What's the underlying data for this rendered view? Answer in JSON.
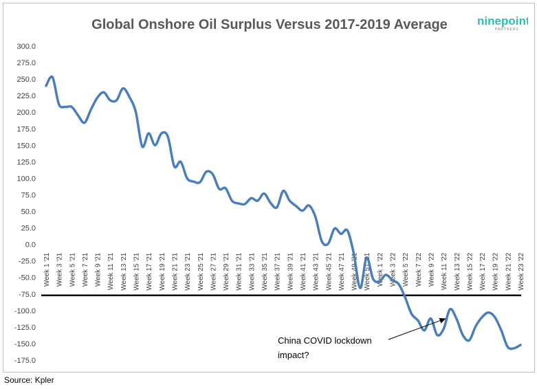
{
  "logo": {
    "word": "ninepoint",
    "sub": "PARTNERS",
    "color": "#2bbfb0"
  },
  "source": "Source: Kpler",
  "chart_data": {
    "type": "line",
    "title": "Global Onshore Oil Surplus Versus 2017-2019 Average",
    "xlabel": "",
    "ylabel": "",
    "ylim": [
      -175,
      300
    ],
    "yticks": [
      300,
      275,
      250,
      225,
      200,
      175,
      150,
      125,
      100,
      75,
      50,
      25,
      0,
      -25,
      -50,
      -75,
      -100,
      -125,
      -150,
      -175
    ],
    "ytick_labels": [
      "300.0",
      "275.0",
      "250.0",
      "225.0",
      "200.0",
      "175.0",
      "150.0",
      "125.0",
      "100.0",
      "75.0",
      "50.0",
      "25.0",
      "0.0",
      "-25.0",
      "-50.0",
      "-75.0",
      "-100.0",
      "-125.0",
      "-150.0",
      "-175.0"
    ],
    "x": [
      1,
      2,
      3,
      4,
      5,
      6,
      7,
      8,
      9,
      10,
      11,
      12,
      13,
      14,
      15,
      16,
      17,
      18,
      19,
      20,
      21,
      22,
      23,
      24,
      25,
      26,
      27,
      28,
      29,
      30,
      31,
      32,
      33,
      34,
      35,
      36,
      37,
      38,
      39,
      40,
      41,
      42,
      43,
      44,
      45,
      46,
      47,
      48,
      49,
      50,
      51,
      52,
      53,
      54,
      55,
      56,
      57,
      58,
      59,
      60,
      61,
      62,
      63,
      64,
      65,
      66,
      67,
      68,
      69,
      70,
      71,
      72,
      73,
      74,
      75
    ],
    "x_tick_labels": [
      "Week 1 '21",
      "Week 3 '21",
      "Week 5 '21",
      "Week 7 '21",
      "Week 9 '21",
      "Week 11 '21",
      "Week 13 '21",
      "Week 15 '21",
      "Week 17 '21",
      "Week 19 '21",
      "Week 21 '21",
      "Week 23 '21",
      "Week 25 '21",
      "Week 27 '21",
      "Week 29 '21",
      "Week 31 '21",
      "Week 33 '21",
      "Week 35 '21",
      "Week 37 '21",
      "Week 39 '21",
      "Week 41 '21",
      "Week 43 '21",
      "Week 45 '21",
      "Week 47 '21",
      "Week 49 '21",
      "Week 51 '21",
      "Week 1 '22",
      "Week 3 '22",
      "Week 5 '22",
      "Week 7 '22",
      "Week 9 '22",
      "Week 11 '22",
      "Week 13 '22",
      "Week 15 '22",
      "Week 17 '22",
      "Week 19 '22",
      "Week 21 '22",
      "Week 23 '22"
    ],
    "series": [
      {
        "name": "Global Onshore Oil Surplus Versus 2017-2019 Average",
        "color": "#4a7ebb",
        "values": [
          240,
          253,
          212,
          208,
          208,
          195,
          184,
          204,
          222,
          230,
          218,
          218,
          236,
          223,
          200,
          148,
          168,
          150,
          168,
          163,
          118,
          125,
          100,
          95,
          94,
          110,
          106,
          84,
          85,
          66,
          62,
          61,
          70,
          66,
          77,
          63,
          56,
          81,
          66,
          58,
          51,
          59,
          42,
          5,
          1,
          24,
          16,
          21,
          -14,
          -66,
          -20,
          -52,
          -56,
          -46,
          -54,
          -60,
          -80,
          -105,
          -115,
          -130,
          -112,
          -137,
          -128,
          -98,
          -112,
          -137,
          -145,
          -124,
          -110,
          -103,
          -110,
          -130,
          -155,
          -157,
          -152
        ]
      }
    ],
    "reference_line": {
      "y": -77,
      "color": "#000000"
    },
    "annotations": [
      {
        "text_line1": "China COVID lockdown",
        "text_line2": "impact?",
        "arrow_to_x": 64,
        "arrow_to_y": -110
      }
    ],
    "grid": false,
    "legend": "none"
  }
}
